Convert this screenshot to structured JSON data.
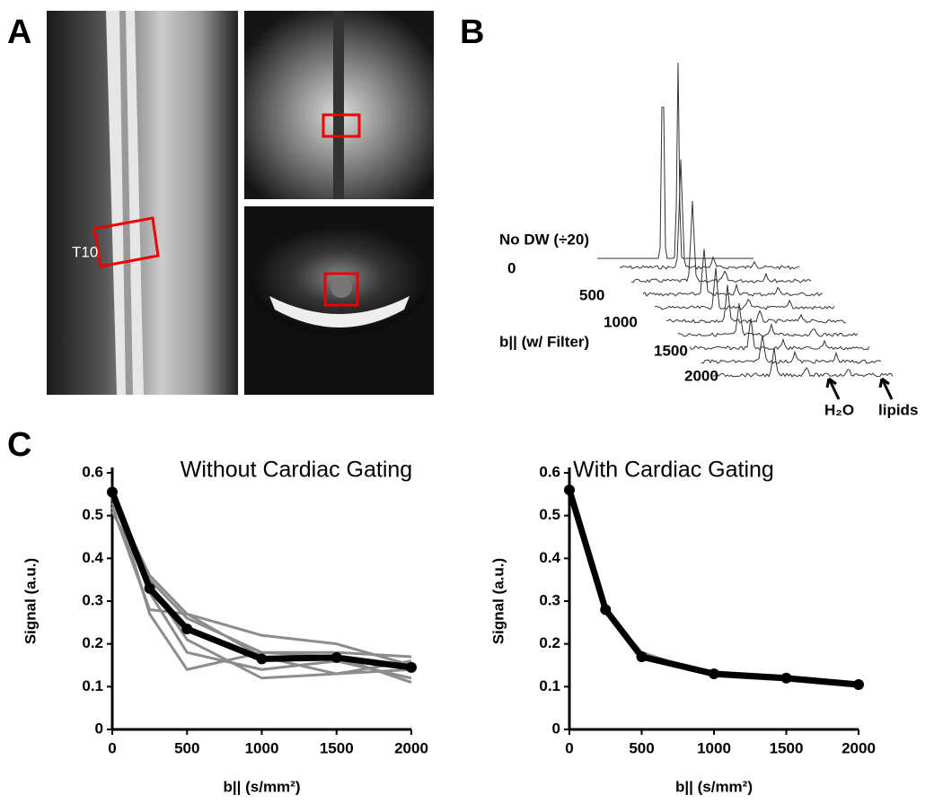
{
  "panels": {
    "A": {
      "label": "A",
      "annotation": "T10"
    },
    "B": {
      "label": "B",
      "trace_labels": [
        "No DW (÷20)",
        "0",
        "500",
        "1000",
        "1500",
        "2000"
      ],
      "axis_label": "b|| (w/ Filter)",
      "peak_labels": [
        "H₂O",
        "lipids"
      ]
    },
    "C": {
      "label": "C"
    }
  },
  "chart_data": [
    {
      "type": "line",
      "title": "Without  Cardiac Gating",
      "x_label": "b|| (s/mm²)",
      "y_label": "Signal (a.u.)",
      "x": [
        0,
        250,
        500,
        1000,
        1500,
        2000
      ],
      "series": [
        {
          "color": "#8c8c8c",
          "values": [
            0.54,
            0.36,
            0.27,
            0.22,
            0.2,
            0.15
          ]
        },
        {
          "color": "#8c8c8c",
          "values": [
            0.53,
            0.35,
            0.26,
            0.18,
            0.18,
            0.17
          ]
        },
        {
          "color": "#8c8c8c",
          "values": [
            0.52,
            0.28,
            0.27,
            0.17,
            0.13,
            0.16
          ]
        },
        {
          "color": "#8c8c8c",
          "values": [
            0.56,
            0.27,
            0.14,
            0.18,
            0.17,
            0.11
          ]
        },
        {
          "color": "#8c8c8c",
          "values": [
            0.51,
            0.34,
            0.21,
            0.12,
            0.13,
            0.14
          ]
        },
        {
          "color": "#8c8c8c",
          "values": [
            0.55,
            0.32,
            0.18,
            0.14,
            0.16,
            0.12
          ]
        },
        {
          "color": "#000000",
          "markers": true,
          "values": [
            0.555,
            0.33,
            0.235,
            0.165,
            0.168,
            0.145
          ]
        }
      ],
      "xlim": [
        0,
        2000
      ],
      "xticks": [
        0,
        500,
        1000,
        1500,
        2000
      ],
      "ylim": [
        0,
        0.6
      ],
      "yticks": [
        0,
        0.1,
        0.2,
        0.3,
        0.4,
        0.5,
        0.6
      ],
      "grid": false
    },
    {
      "type": "line",
      "title": "With Cardiac Gating",
      "x_label": "b|| (s/mm²)",
      "y_label": "Signal (a.u.)",
      "x": [
        0,
        250,
        500,
        1000,
        1500,
        2000
      ],
      "series": [
        {
          "color": "#8c8c8c",
          "values": [
            0.55,
            0.28,
            0.18,
            0.125,
            0.115,
            0.1
          ]
        },
        {
          "color": "#8c8c8c",
          "values": [
            0.565,
            0.285,
            0.165,
            0.135,
            0.12,
            0.105
          ]
        },
        {
          "color": "#000000",
          "markers": true,
          "values": [
            0.56,
            0.28,
            0.17,
            0.13,
            0.12,
            0.105
          ]
        }
      ],
      "xlim": [
        0,
        2000
      ],
      "xticks": [
        0,
        500,
        1000,
        1500,
        2000
      ],
      "ylim": [
        0,
        0.6
      ],
      "yticks": [
        0,
        0.1,
        0.2,
        0.3,
        0.4,
        0.5,
        0.6
      ],
      "grid": false
    }
  ]
}
